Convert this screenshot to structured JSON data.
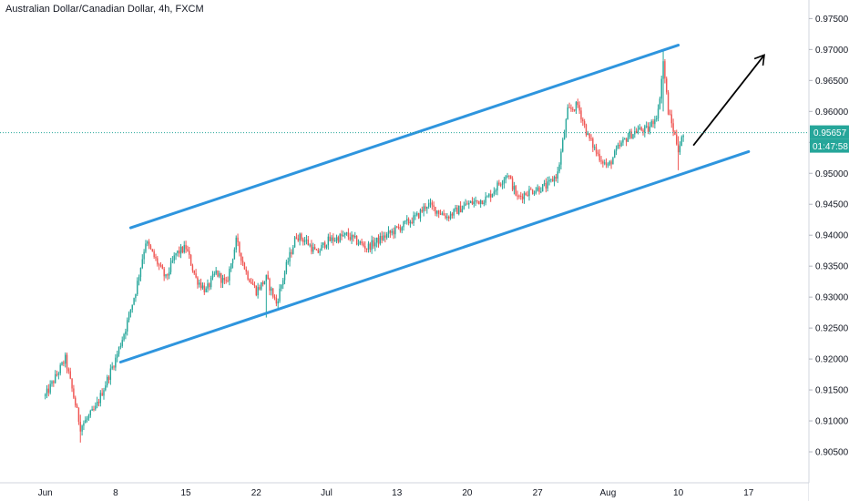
{
  "chart_data": {
    "type": "candlestick",
    "title": "Australian Dollar/Canadian Dollar, 4h, FXCM",
    "ylim": [
      0.9,
      0.978
    ],
    "y_ticks": [
      "0.90500",
      "0.91000",
      "0.91500",
      "0.92000",
      "0.92500",
      "0.93000",
      "0.93500",
      "0.94000",
      "0.94500",
      "0.95000",
      "0.95500",
      "0.96000",
      "0.96500",
      "0.97000",
      "0.97500"
    ],
    "x_ticks": [
      "Jun",
      "8",
      "15",
      "22",
      "Jul",
      "13",
      "20",
      "27",
      "Aug",
      "10",
      "17"
    ],
    "x_range": [
      -4.5,
      76
    ],
    "last_price": {
      "value": "0.95657",
      "countdown": "01:47:58"
    },
    "price_anchors": [
      [
        0,
        0.914
      ],
      [
        2,
        0.92
      ],
      [
        3.5,
        0.909
      ],
      [
        5,
        0.912
      ],
      [
        7,
        0.92
      ],
      [
        8,
        0.925
      ],
      [
        9,
        0.931
      ],
      [
        10,
        0.939
      ],
      [
        11,
        0.936
      ],
      [
        12,
        0.933
      ],
      [
        13,
        0.937
      ],
      [
        14,
        0.938
      ],
      [
        15,
        0.933
      ],
      [
        16,
        0.931
      ],
      [
        17,
        0.934
      ],
      [
        18,
        0.932
      ],
      [
        19,
        0.939
      ],
      [
        20,
        0.934
      ],
      [
        21,
        0.931
      ],
      [
        22,
        0.933
      ],
      [
        23,
        0.929
      ],
      [
        24,
        0.935
      ],
      [
        25,
        0.94
      ],
      [
        26,
        0.939
      ],
      [
        27,
        0.937
      ],
      [
        28,
        0.939
      ],
      [
        30,
        0.94
      ],
      [
        32,
        0.938
      ],
      [
        33,
        0.939
      ],
      [
        34,
        0.94
      ],
      [
        35,
        0.941
      ],
      [
        37,
        0.943
      ],
      [
        38,
        0.945
      ],
      [
        40,
        0.943
      ],
      [
        42,
        0.945
      ],
      [
        44,
        0.946
      ],
      [
        46,
        0.95
      ],
      [
        47,
        0.946
      ],
      [
        48,
        0.947
      ],
      [
        50,
        0.948
      ],
      [
        51,
        0.95
      ],
      [
        52,
        0.96
      ],
      [
        53,
        0.961
      ],
      [
        54,
        0.956
      ],
      [
        55,
        0.953
      ],
      [
        56,
        0.951
      ],
      [
        57,
        0.954
      ],
      [
        58,
        0.956
      ],
      [
        59,
        0.957
      ],
      [
        60,
        0.957
      ],
      [
        61,
        0.96
      ],
      [
        61.5,
        0.968
      ],
      [
        62,
        0.96
      ],
      [
        62.5,
        0.957
      ],
      [
        63,
        0.954
      ],
      [
        63.6,
        0.9565
      ]
    ],
    "wick_amplitude": 0.0009,
    "spikes": [
      {
        "day": 22,
        "low": 0.9267,
        "high": 0.931
      },
      {
        "day": 61.5,
        "low": 0.96,
        "high": 0.97
      },
      {
        "day": 63,
        "low": 0.9505,
        "high": 0.956
      },
      {
        "day": 3.5,
        "low": 0.9065,
        "high": 0.911
      }
    ],
    "annotations": [
      {
        "type": "channel-upper",
        "x1": 8.5,
        "y1": 0.9412,
        "x2": 63,
        "y2": 0.9707
      },
      {
        "type": "channel-lower",
        "x1": 7.5,
        "y1": 0.9195,
        "x2": 70,
        "y2": 0.9535
      },
      {
        "type": "arrow",
        "x1": 64.5,
        "y1": 0.9545,
        "x2": 71.5,
        "y2": 0.969
      }
    ],
    "colors": {
      "up": "#26a69a",
      "down": "#ef5350",
      "channel": "#2e95de",
      "arrow": "#000000",
      "price_line": "#26a69a"
    }
  }
}
